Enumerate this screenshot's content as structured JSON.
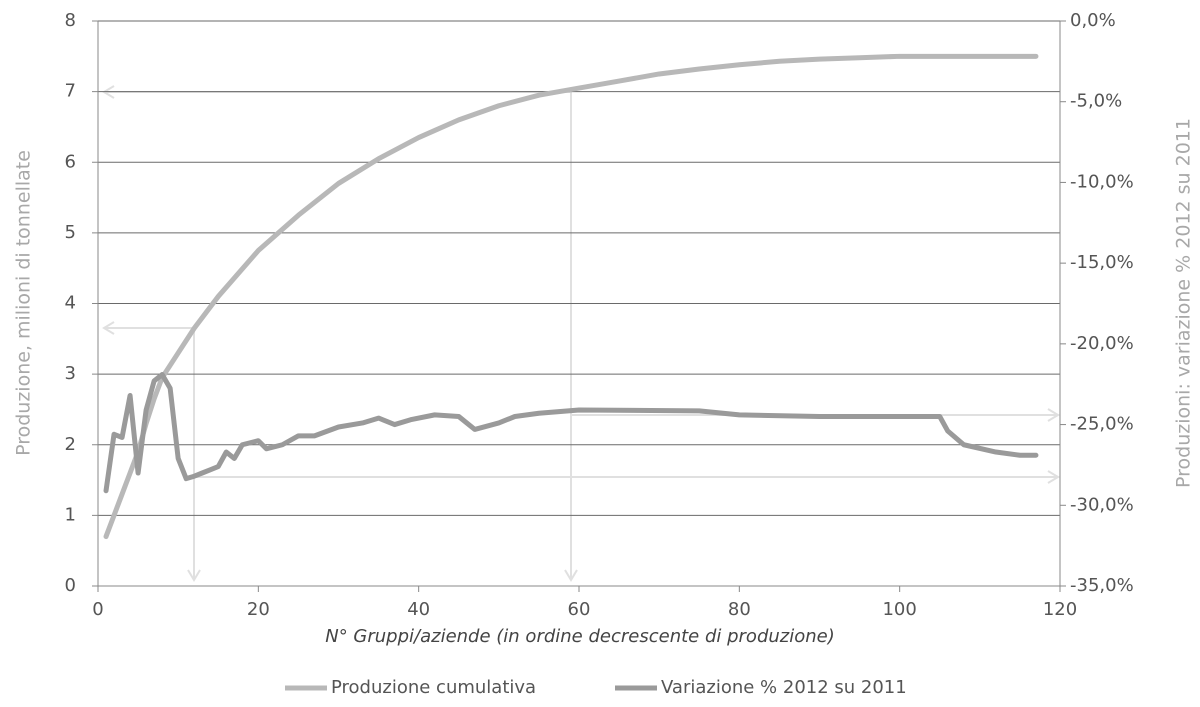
{
  "chart_data": {
    "type": "line",
    "xlabel": "N° Gruppi/aziende (in ordine decrescente di produzione)",
    "ylabel": "Produzione, milioni di tonnellate",
    "y2label": "Produzioni: variazione % 2012 su 2011",
    "xlim": [
      0,
      120
    ],
    "xticks": [
      0,
      20,
      40,
      60,
      80,
      100,
      120
    ],
    "ylim": [
      0,
      8
    ],
    "yticks": [
      0,
      1,
      2,
      3,
      4,
      5,
      6,
      7,
      8
    ],
    "y2lim": [
      -35,
      0
    ],
    "y2ticks": [
      {
        "value": -35,
        "label": "-35,0%"
      },
      {
        "value": -30,
        "label": "-30,0%"
      },
      {
        "value": -25,
        "label": "-25,0%"
      },
      {
        "value": -20,
        "label": "-20,0%"
      },
      {
        "value": -15,
        "label": "-15,0%"
      },
      {
        "value": -10,
        "label": "-10,0%"
      },
      {
        "value": -5,
        "label": "-5,0%"
      },
      {
        "value": 0,
        "label": "0,0%"
      }
    ],
    "grid": true,
    "legend": "bottom",
    "series": [
      {
        "name": "Produzione cumulativa",
        "color": "#b8b8b8",
        "x": [
          1,
          2,
          3,
          4,
          5,
          6,
          7,
          8,
          10,
          12,
          15,
          20,
          25,
          30,
          35,
          40,
          45,
          50,
          55,
          60,
          65,
          70,
          75,
          80,
          85,
          90,
          95,
          100,
          105,
          110,
          117
        ],
        "values": [
          0.7,
          1.0,
          1.3,
          1.6,
          1.9,
          2.3,
          2.65,
          2.95,
          3.3,
          3.65,
          4.1,
          4.75,
          5.25,
          5.7,
          6.05,
          6.35,
          6.6,
          6.8,
          6.95,
          7.05,
          7.15,
          7.25,
          7.32,
          7.38,
          7.43,
          7.46,
          7.48,
          7.5,
          7.5,
          7.5,
          7.5
        ]
      },
      {
        "name": "Variazione % 2012 su 2011",
        "color": "#9a9a9a",
        "axis": "y2",
        "x": [
          1,
          2,
          3,
          4,
          5,
          6,
          7,
          8,
          9,
          10,
          11,
          12,
          13,
          14,
          15,
          16,
          17,
          18,
          20,
          21,
          23,
          25,
          27,
          30,
          33,
          35,
          37,
          39,
          42,
          45,
          47,
          50,
          52,
          55,
          60,
          75,
          80,
          90,
          105,
          106,
          108,
          112,
          115,
          117
        ],
        "values": [
          -29.1,
          -25.6,
          -25.8,
          -23.2,
          -28.0,
          -24.1,
          -22.3,
          -21.9,
          -22.75,
          -27.1,
          -28.35,
          -28.2,
          -28.0,
          -27.8,
          -27.6,
          -26.7,
          -27.1,
          -26.25,
          -26.0,
          -26.5,
          -26.25,
          -25.7,
          -25.7,
          -25.15,
          -24.9,
          -24.6,
          -25.0,
          -24.7,
          -24.4,
          -24.5,
          -25.3,
          -24.9,
          -24.5,
          -24.3,
          -24.1,
          -24.15,
          -24.4,
          -24.5,
          -24.5,
          -25.4,
          -26.25,
          -26.7,
          -26.9,
          -26.9
        ]
      }
    ]
  }
}
